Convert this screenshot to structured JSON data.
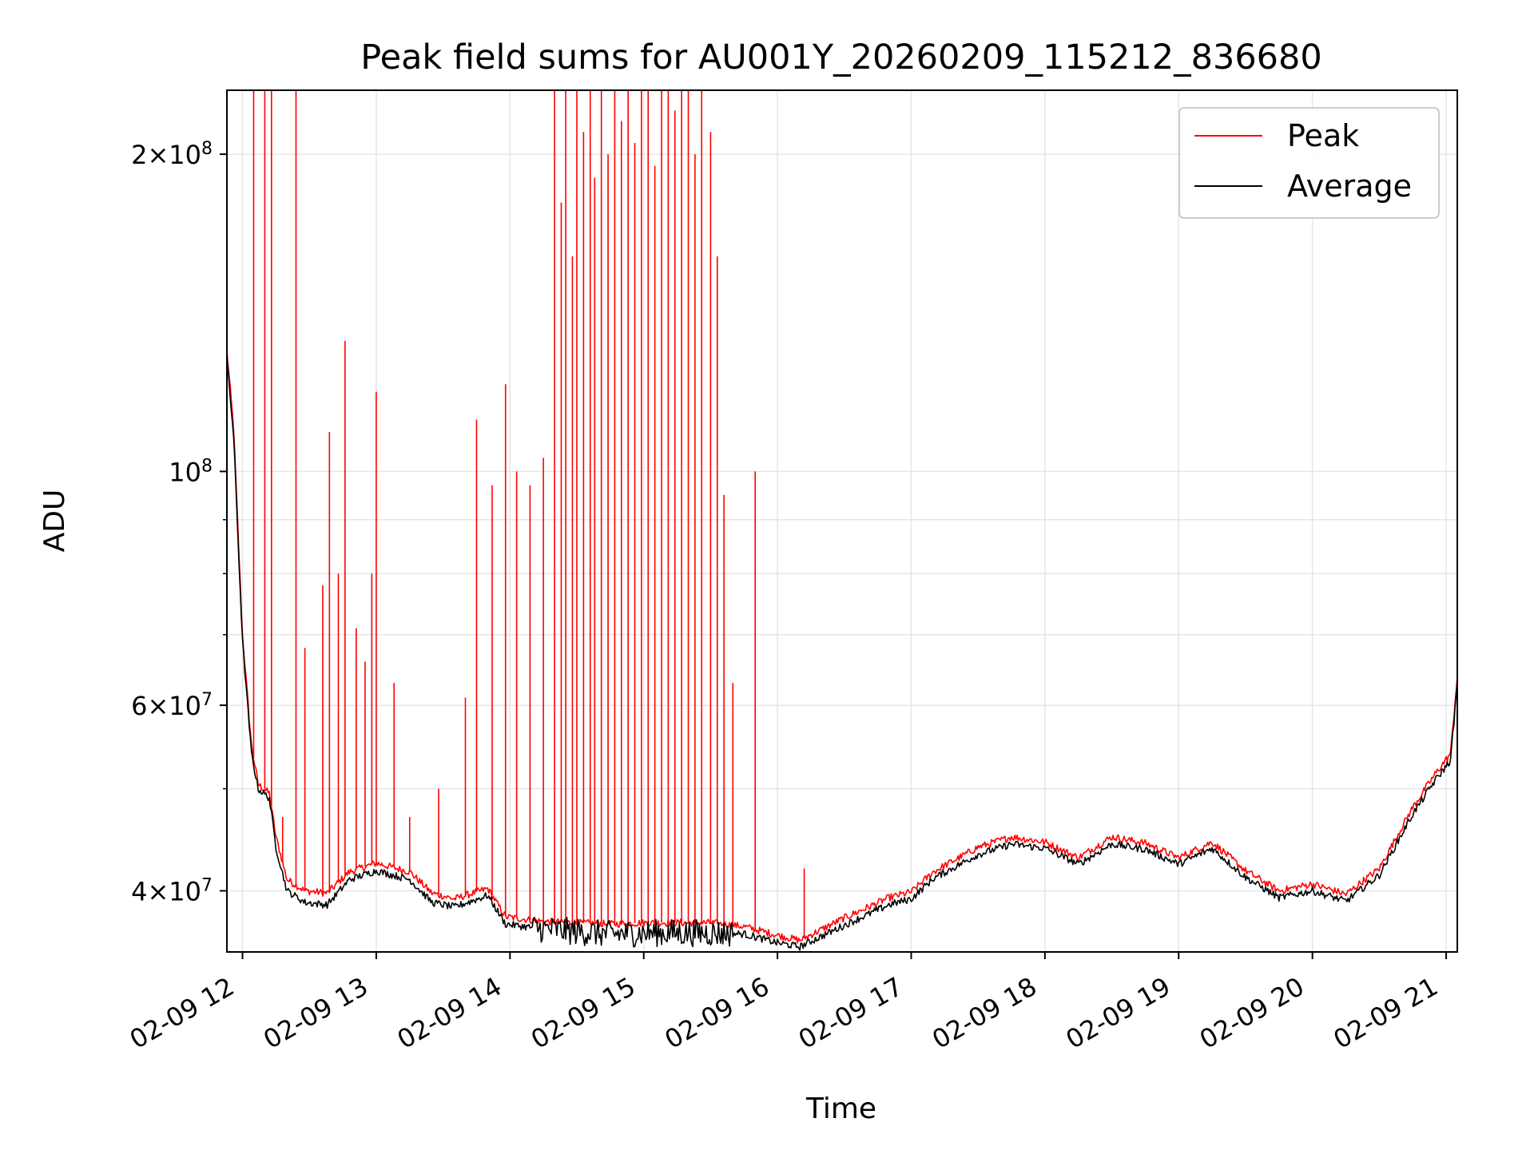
{
  "chart_data": {
    "type": "line",
    "title": "Peak field sums for AU001Y_20260209_115212_836680",
    "xlabel": "Time",
    "ylabel": "ADU",
    "y_scale": "log",
    "ylim": [
      35000000,
      230000000
    ],
    "xlim": [
      "02-09 11:53",
      "02-09 21:05"
    ],
    "grid": true,
    "legend_position": "top-right",
    "x_ticks": [
      "02-09 12",
      "02-09 13",
      "02-09 14",
      "02-09 15",
      "02-09 16",
      "02-09 17",
      "02-09 18",
      "02-09 19",
      "02-09 20",
      "02-09 21"
    ],
    "y_ticks": [
      {
        "value": 40000000,
        "mantissa": "4",
        "exponent": "7"
      },
      {
        "value": 60000000,
        "mantissa": "6",
        "exponent": "7"
      },
      {
        "value": 100000000,
        "mantissa": "",
        "exponent": "8"
      },
      {
        "value": 200000000,
        "mantissa": "2",
        "exponent": "8"
      }
    ],
    "series": [
      {
        "name": "Peak",
        "color": "#ff0000",
        "baseline": [
          [
            "02-09 11:53",
            130000000
          ],
          [
            "02-09 11:56",
            110000000
          ],
          [
            "02-09 12:00",
            70000000
          ],
          [
            "02-09 12:04",
            55000000
          ],
          [
            "02-09 12:07",
            50500000
          ],
          [
            "02-09 12:12",
            49500000
          ],
          [
            "02-09 12:15",
            45000000
          ],
          [
            "02-09 12:20",
            41000000
          ],
          [
            "02-09 12:28",
            40000000
          ],
          [
            "02-09 12:38",
            39800000
          ],
          [
            "02-09 12:48",
            41700000
          ],
          [
            "02-09 13:00",
            42500000
          ],
          [
            "02-09 13:15",
            41700000
          ],
          [
            "02-09 13:25",
            39800000
          ],
          [
            "02-09 13:35",
            39300000
          ],
          [
            "02-09 13:50",
            40200000
          ],
          [
            "02-09 13:58",
            37800000
          ],
          [
            "02-09 14:15",
            37400000
          ],
          [
            "02-09 14:45",
            37200000
          ],
          [
            "02-09 15:00",
            37300000
          ],
          [
            "02-09 15:30",
            37300000
          ],
          [
            "02-09 15:45",
            37000000
          ],
          [
            "02-09 16:00",
            36300000
          ],
          [
            "02-09 16:10",
            35900000
          ],
          [
            "02-09 16:30",
            37700000
          ],
          [
            "02-09 16:50",
            39400000
          ],
          [
            "02-09 17:00",
            39900000
          ],
          [
            "02-09 17:10",
            41700000
          ],
          [
            "02-09 17:30",
            44000000
          ],
          [
            "02-09 17:45",
            45000000
          ],
          [
            "02-09 18:00",
            44500000
          ],
          [
            "02-09 18:15",
            43000000
          ],
          [
            "02-09 18:30",
            45000000
          ],
          [
            "02-09 18:45",
            44400000
          ],
          [
            "02-09 19:00",
            43000000
          ],
          [
            "02-09 19:15",
            44500000
          ],
          [
            "02-09 19:30",
            41800000
          ],
          [
            "02-09 19:45",
            40000000
          ],
          [
            "02-09 20:00",
            40600000
          ],
          [
            "02-09 20:15",
            39700000
          ],
          [
            "02-09 20:30",
            42000000
          ],
          [
            "02-09 20:45",
            48000000
          ],
          [
            "02-09 20:55",
            51600000
          ],
          [
            "02-09 21:02",
            54000000
          ],
          [
            "02-09 21:05",
            64000000
          ]
        ],
        "spikes": [
          [
            "02-09 12:05",
            230000000
          ],
          [
            "02-09 12:10",
            230000000
          ],
          [
            "02-09 12:13",
            230000000
          ],
          [
            "02-09 12:18",
            47000000
          ],
          [
            "02-09 12:24",
            230000000
          ],
          [
            "02-09 12:28",
            68000000
          ],
          [
            "02-09 12:36",
            78000000
          ],
          [
            "02-09 12:39",
            109000000
          ],
          [
            "02-09 12:43",
            80000000
          ],
          [
            "02-09 12:46",
            133000000
          ],
          [
            "02-09 12:51",
            71000000
          ],
          [
            "02-09 12:55",
            66000000
          ],
          [
            "02-09 12:58",
            80000000
          ],
          [
            "02-09 13:00",
            119000000
          ],
          [
            "02-09 13:08",
            63000000
          ],
          [
            "02-09 13:15",
            47000000
          ],
          [
            "02-09 13:28",
            50000000
          ],
          [
            "02-09 13:40",
            61000000
          ],
          [
            "02-09 13:45",
            112000000
          ],
          [
            "02-09 13:52",
            97000000
          ],
          [
            "02-09 13:58",
            121000000
          ],
          [
            "02-09 14:03",
            100000000
          ],
          [
            "02-09 14:09",
            97000000
          ],
          [
            "02-09 14:15",
            103000000
          ],
          [
            "02-09 14:20",
            230000000
          ],
          [
            "02-09 14:23",
            180000000
          ],
          [
            "02-09 14:25",
            230000000
          ],
          [
            "02-09 14:28",
            160000000
          ],
          [
            "02-09 14:30",
            230000000
          ],
          [
            "02-09 14:33",
            210000000
          ],
          [
            "02-09 14:36",
            230000000
          ],
          [
            "02-09 14:38",
            190000000
          ],
          [
            "02-09 14:41",
            230000000
          ],
          [
            "02-09 14:44",
            200000000
          ],
          [
            "02-09 14:47",
            230000000
          ],
          [
            "02-09 14:50",
            215000000
          ],
          [
            "02-09 14:53",
            230000000
          ],
          [
            "02-09 14:56",
            205000000
          ],
          [
            "02-09 14:59",
            230000000
          ],
          [
            "02-09 15:02",
            230000000
          ],
          [
            "02-09 15:05",
            195000000
          ],
          [
            "02-09 15:08",
            230000000
          ],
          [
            "02-09 15:11",
            230000000
          ],
          [
            "02-09 15:14",
            220000000
          ],
          [
            "02-09 15:17",
            230000000
          ],
          [
            "02-09 15:20",
            230000000
          ],
          [
            "02-09 15:23",
            200000000
          ],
          [
            "02-09 15:26",
            230000000
          ],
          [
            "02-09 15:30",
            210000000
          ],
          [
            "02-09 15:33",
            160000000
          ],
          [
            "02-09 15:36",
            95000000
          ],
          [
            "02-09 15:40",
            63000000
          ],
          [
            "02-09 15:50",
            100000000
          ],
          [
            "02-09 16:12",
            42000000
          ]
        ]
      },
      {
        "name": "Average",
        "color": "#000000",
        "baseline": [
          [
            "02-09 11:53",
            128000000
          ],
          [
            "02-09 11:56",
            108000000
          ],
          [
            "02-09 12:00",
            69000000
          ],
          [
            "02-09 12:04",
            54000000
          ],
          [
            "02-09 12:07",
            50000000
          ],
          [
            "02-09 12:12",
            49000000
          ],
          [
            "02-09 12:15",
            44000000
          ],
          [
            "02-09 12:20",
            40000000
          ],
          [
            "02-09 12:28",
            39000000
          ],
          [
            "02-09 12:38",
            38800000
          ],
          [
            "02-09 12:48",
            41000000
          ],
          [
            "02-09 13:00",
            41800000
          ],
          [
            "02-09 13:15",
            41000000
          ],
          [
            "02-09 13:25",
            39000000
          ],
          [
            "02-09 13:35",
            38600000
          ],
          [
            "02-09 13:50",
            39600000
          ],
          [
            "02-09 13:58",
            37200000
          ],
          [
            "02-09 14:15",
            36800000
          ],
          [
            "02-09 14:45",
            36400000
          ],
          [
            "02-09 15:00",
            36500000
          ],
          [
            "02-09 15:30",
            36500000
          ],
          [
            "02-09 15:45",
            36400000
          ],
          [
            "02-09 16:00",
            35700000
          ],
          [
            "02-09 16:10",
            35400000
          ],
          [
            "02-09 16:30",
            37100000
          ],
          [
            "02-09 16:50",
            38800000
          ],
          [
            "02-09 17:00",
            39300000
          ],
          [
            "02-09 17:10",
            41100000
          ],
          [
            "02-09 17:30",
            43300000
          ],
          [
            "02-09 17:45",
            44300000
          ],
          [
            "02-09 18:00",
            43900000
          ],
          [
            "02-09 18:15",
            42400000
          ],
          [
            "02-09 18:30",
            44300000
          ],
          [
            "02-09 18:45",
            43800000
          ],
          [
            "02-09 19:00",
            42400000
          ],
          [
            "02-09 19:15",
            43900000
          ],
          [
            "02-09 19:30",
            41200000
          ],
          [
            "02-09 19:45",
            39400000
          ],
          [
            "02-09 20:00",
            40000000
          ],
          [
            "02-09 20:15",
            39100000
          ],
          [
            "02-09 20:30",
            41400000
          ],
          [
            "02-09 20:45",
            47300000
          ],
          [
            "02-09 20:55",
            50900000
          ],
          [
            "02-09 21:02",
            53200000
          ],
          [
            "02-09 21:05",
            63000000
          ]
        ]
      }
    ]
  }
}
